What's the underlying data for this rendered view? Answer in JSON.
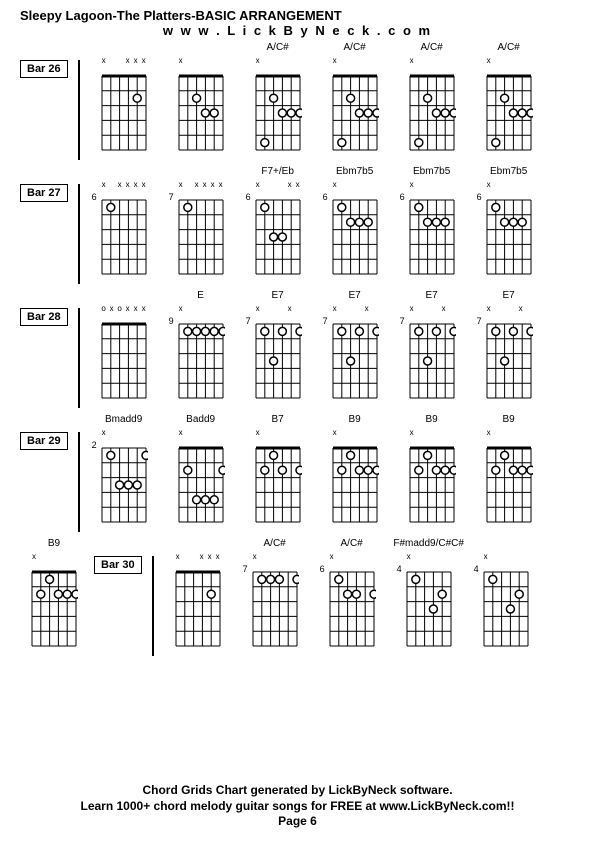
{
  "title": "Sleepy Lagoon-The Platters-BASIC ARRANGEMENT",
  "url": "w w w . L i c k B y N e c k . c o m",
  "footer_line1": "Chord Grids Chart generated by LickByNeck software.",
  "footer_line2": "Learn 1000+ chord melody guitar songs for FREE at www.LickByNeck.com!!",
  "footer_line3": "Page 6",
  "diagram_style": {
    "width": 48,
    "height": 90,
    "frets": 5,
    "strings": 6,
    "line_color": "#000000",
    "dot_color": "#000000",
    "dot_radius": 4
  },
  "rows": [
    {
      "bar": "Bar 26",
      "chords": [
        {
          "name": "",
          "fret": "",
          "mutes": [
            "x",
            "",
            "",
            "x",
            "x",
            "x"
          ],
          "dots": [
            [
              4,
              2
            ]
          ]
        },
        {
          "name": "",
          "fret": "",
          "mutes": [
            "x",
            "",
            "",
            "",
            "",
            ""
          ],
          "dots": [
            [
              2,
              2
            ],
            [
              3,
              3
            ],
            [
              4,
              3
            ]
          ]
        },
        {
          "name": "A/C#",
          "fret": "",
          "mutes": [
            "x",
            "",
            "",
            "",
            "",
            ""
          ],
          "dots": [
            [
              1,
              5
            ],
            [
              2,
              2
            ],
            [
              3,
              3
            ],
            [
              4,
              3
            ],
            [
              5,
              3
            ]
          ]
        },
        {
          "name": "A/C#",
          "fret": "",
          "mutes": [
            "x",
            "",
            "",
            "",
            "",
            ""
          ],
          "dots": [
            [
              1,
              5
            ],
            [
              2,
              2
            ],
            [
              3,
              3
            ],
            [
              4,
              3
            ],
            [
              5,
              3
            ]
          ]
        },
        {
          "name": "A/C#",
          "fret": "",
          "mutes": [
            "x",
            "",
            "",
            "",
            "",
            ""
          ],
          "dots": [
            [
              1,
              5
            ],
            [
              2,
              2
            ],
            [
              3,
              3
            ],
            [
              4,
              3
            ],
            [
              5,
              3
            ]
          ]
        },
        {
          "name": "A/C#",
          "fret": "",
          "mutes": [
            "x",
            "",
            "",
            "",
            "",
            ""
          ],
          "dots": [
            [
              1,
              5
            ],
            [
              2,
              2
            ],
            [
              3,
              3
            ],
            [
              4,
              3
            ],
            [
              5,
              3
            ]
          ]
        }
      ]
    },
    {
      "bar": "Bar 27",
      "chords": [
        {
          "name": "",
          "fret": "6",
          "mutes": [
            "x",
            "",
            "x",
            "x",
            "x",
            "x"
          ],
          "dots": [
            [
              1,
              1
            ]
          ]
        },
        {
          "name": "",
          "fret": "7",
          "mutes": [
            "x",
            "",
            "x",
            "x",
            "x",
            "x"
          ],
          "dots": [
            [
              1,
              1
            ]
          ]
        },
        {
          "name": "F7+/Eb",
          "fret": "6",
          "mutes": [
            "x",
            "",
            "",
            "",
            "x",
            "x"
          ],
          "dots": [
            [
              1,
              1
            ],
            [
              2,
              3
            ],
            [
              3,
              3
            ]
          ]
        },
        {
          "name": "Ebm7b5",
          "fret": "6",
          "mutes": [
            "x",
            "",
            "",
            "",
            "",
            ""
          ],
          "dots": [
            [
              1,
              1
            ],
            [
              2,
              2
            ],
            [
              3,
              2
            ],
            [
              4,
              2
            ]
          ]
        },
        {
          "name": "Ebm7b5",
          "fret": "6",
          "mutes": [
            "x",
            "",
            "",
            "",
            "",
            ""
          ],
          "dots": [
            [
              1,
              1
            ],
            [
              2,
              2
            ],
            [
              3,
              2
            ],
            [
              4,
              2
            ]
          ]
        },
        {
          "name": "Ebm7b5",
          "fret": "6",
          "mutes": [
            "x",
            "",
            "",
            "",
            "",
            ""
          ],
          "dots": [
            [
              1,
              1
            ],
            [
              2,
              2
            ],
            [
              3,
              2
            ],
            [
              4,
              2
            ]
          ]
        }
      ]
    },
    {
      "bar": "Bar 28",
      "chords": [
        {
          "name": "",
          "fret": "",
          "mutes": [
            "o",
            "x",
            "o",
            "x",
            "x",
            "x"
          ],
          "dots": []
        },
        {
          "name": "E",
          "fret": "9",
          "mutes": [
            "x",
            "",
            "",
            "",
            "",
            ""
          ],
          "dots": [
            [
              1,
              1
            ],
            [
              2,
              1
            ],
            [
              3,
              1
            ],
            [
              4,
              1
            ],
            [
              5,
              1
            ]
          ]
        },
        {
          "name": "E7",
          "fret": "7",
          "mutes": [
            "x",
            "",
            "",
            "",
            "x",
            ""
          ],
          "dots": [
            [
              1,
              1
            ],
            [
              2,
              3
            ],
            [
              3,
              1
            ],
            [
              5,
              1
            ]
          ]
        },
        {
          "name": "E7",
          "fret": "7",
          "mutes": [
            "x",
            "",
            "",
            "",
            "x",
            ""
          ],
          "dots": [
            [
              1,
              1
            ],
            [
              2,
              3
            ],
            [
              3,
              1
            ],
            [
              5,
              1
            ]
          ]
        },
        {
          "name": "E7",
          "fret": "7",
          "mutes": [
            "x",
            "",
            "",
            "",
            "x",
            ""
          ],
          "dots": [
            [
              1,
              1
            ],
            [
              2,
              3
            ],
            [
              3,
              1
            ],
            [
              5,
              1
            ]
          ]
        },
        {
          "name": "E7",
          "fret": "7",
          "mutes": [
            "x",
            "",
            "",
            "",
            "x",
            ""
          ],
          "dots": [
            [
              1,
              1
            ],
            [
              2,
              3
            ],
            [
              3,
              1
            ],
            [
              5,
              1
            ]
          ]
        }
      ]
    },
    {
      "bar": "Bar 29",
      "chords": [
        {
          "name": "Bmadd9",
          "fret": "2",
          "mutes": [
            "x",
            "",
            "",
            "",
            "",
            ""
          ],
          "dots": [
            [
              1,
              1
            ],
            [
              2,
              3
            ],
            [
              3,
              3
            ],
            [
              4,
              3
            ],
            [
              5,
              1
            ]
          ]
        },
        {
          "name": "Badd9",
          "fret": "",
          "mutes": [
            "x",
            "",
            "",
            "",
            "",
            ""
          ],
          "dots": [
            [
              1,
              2
            ],
            [
              2,
              4
            ],
            [
              3,
              4
            ],
            [
              4,
              4
            ],
            [
              5,
              2
            ]
          ]
        },
        {
          "name": "B7",
          "fret": "",
          "mutes": [
            "x",
            "",
            "",
            "",
            "",
            ""
          ],
          "dots": [
            [
              1,
              2
            ],
            [
              2,
              1
            ],
            [
              3,
              2
            ],
            [
              5,
              2
            ]
          ]
        },
        {
          "name": "B9",
          "fret": "",
          "mutes": [
            "x",
            "",
            "",
            "",
            "",
            ""
          ],
          "dots": [
            [
              1,
              2
            ],
            [
              2,
              1
            ],
            [
              3,
              2
            ],
            [
              4,
              2
            ],
            [
              5,
              2
            ]
          ]
        },
        {
          "name": "B9",
          "fret": "",
          "mutes": [
            "x",
            "",
            "",
            "",
            "",
            ""
          ],
          "dots": [
            [
              1,
              2
            ],
            [
              2,
              1
            ],
            [
              3,
              2
            ],
            [
              4,
              2
            ],
            [
              5,
              2
            ]
          ]
        },
        {
          "name": "B9",
          "fret": "",
          "mutes": [
            "x",
            "",
            "",
            "",
            "",
            ""
          ],
          "dots": [
            [
              1,
              2
            ],
            [
              2,
              1
            ],
            [
              3,
              2
            ],
            [
              4,
              2
            ],
            [
              5,
              2
            ]
          ]
        }
      ]
    }
  ],
  "last_row": {
    "pre_chord": {
      "name": "B9",
      "fret": "",
      "mutes": [
        "x",
        "",
        "",
        "",
        "",
        ""
      ],
      "dots": [
        [
          1,
          2
        ],
        [
          2,
          1
        ],
        [
          3,
          2
        ],
        [
          4,
          2
        ],
        [
          5,
          2
        ]
      ]
    },
    "bar": "Bar 30",
    "chords": [
      {
        "name": "",
        "fret": "",
        "mutes": [
          "x",
          "",
          "",
          "x",
          "x",
          "x"
        ],
        "dots": [
          [
            4,
            2
          ]
        ]
      },
      {
        "name": "A/C#",
        "fret": "7",
        "mutes": [
          "x",
          "",
          "",
          "",
          "",
          ""
        ],
        "dots": [
          [
            1,
            1
          ],
          [
            2,
            1
          ],
          [
            3,
            1
          ],
          [
            5,
            1
          ]
        ]
      },
      {
        "name": "A/C#",
        "fret": "6",
        "mutes": [
          "x",
          "",
          "",
          "",
          "",
          ""
        ],
        "dots": [
          [
            1,
            1
          ],
          [
            2,
            2
          ],
          [
            3,
            2
          ],
          [
            5,
            2
          ]
        ]
      },
      {
        "name": "F#madd9/C#C#",
        "fret": "4",
        "mutes": [
          "x",
          "",
          "",
          "",
          "",
          ""
        ],
        "dots": [
          [
            1,
            1
          ],
          [
            3,
            3
          ],
          [
            4,
            2
          ]
        ]
      },
      {
        "name": "",
        "fret": "4",
        "mutes": [
          "x",
          "",
          "",
          "",
          "",
          ""
        ],
        "dots": [
          [
            1,
            1
          ],
          [
            3,
            3
          ],
          [
            4,
            2
          ]
        ]
      }
    ]
  }
}
